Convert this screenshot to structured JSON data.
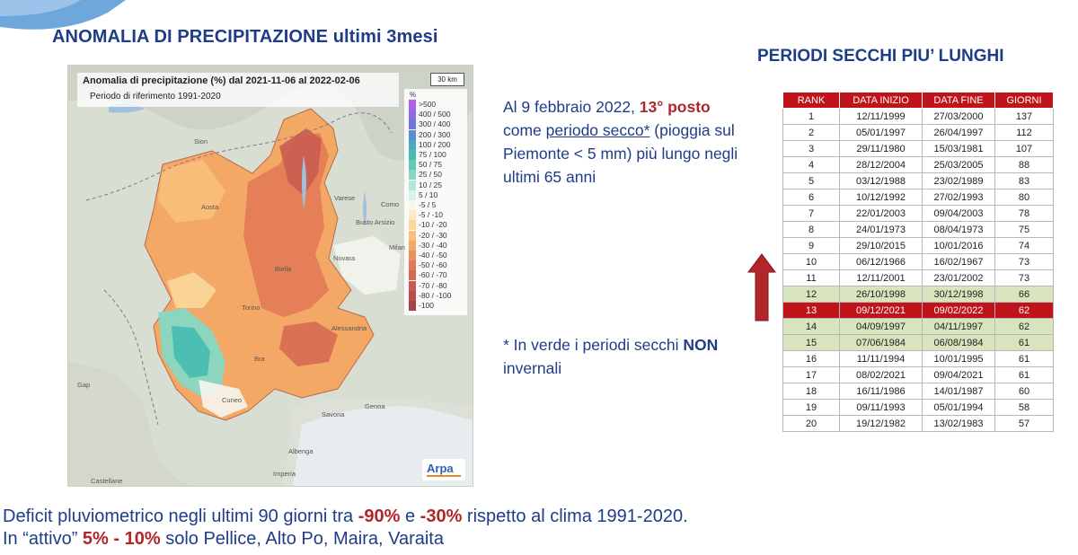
{
  "title_left": "ANOMALIA DI PRECIPITAZIONE ultimi 3mesi",
  "title_right": "PERIODI SECCHI PIU’ LUNGHI",
  "map": {
    "header_title": "Anomalia di precipitazione (%) dal 2021-11-06 al 2022-02-06",
    "header_subtitle": "Periodo di riferimento 1991-2020",
    "scale_label": "30 km",
    "legend_unit": "%",
    "legend": [
      {
        "label": ">500",
        "color": "#b15ef0"
      },
      {
        "label": "400 / 500",
        "color": "#8f6ae0"
      },
      {
        "label": "300 / 400",
        "color": "#6f78d8"
      },
      {
        "label": "200 / 300",
        "color": "#5a8ed2"
      },
      {
        "label": "100 / 200",
        "color": "#4aa9c4"
      },
      {
        "label": "75 / 100",
        "color": "#46bdb0"
      },
      {
        "label": "50 / 75",
        "color": "#5fcab5"
      },
      {
        "label": "25 / 50",
        "color": "#86d8c4"
      },
      {
        "label": "10 / 25",
        "color": "#b3e6d6"
      },
      {
        "label": "5 / 10",
        "color": "#d7f2e8"
      },
      {
        "label": "-5 / 5",
        "color": "#f6f6ee"
      },
      {
        "label": "-5 / -10",
        "color": "#fde8c4"
      },
      {
        "label": "-10 / -20",
        "color": "#fbd79c"
      },
      {
        "label": "-20 / -30",
        "color": "#f8c07a"
      },
      {
        "label": "-30 / -40",
        "color": "#f3a865"
      },
      {
        "label": "-40 / -50",
        "color": "#ec8f5a"
      },
      {
        "label": "-50 / -60",
        "color": "#e27a55"
      },
      {
        "label": "-60 / -70",
        "color": "#d66a52"
      },
      {
        "label": "-70 / -80",
        "color": "#c95c50"
      },
      {
        "label": "-80 / -100",
        "color": "#b84e4e"
      },
      {
        "label": "-100",
        "color": "#a14349"
      }
    ],
    "places": [
      "Sion",
      "Aosta",
      "Biella",
      "Novara",
      "Milan",
      "Torino",
      "Alessandria",
      "Cuneo",
      "Savona",
      "Genoa",
      "Varese",
      "Como",
      "Gap",
      "Imperia",
      "Albenga",
      "Castellane",
      "Bra",
      "Busto Arsizio"
    ],
    "logo_text": "Arpa"
  },
  "side_text": {
    "line_prefix": "Al 9 febbraio 2022, ",
    "rank_highlight": "13° posto",
    "line2_prefix": "come ",
    "underlined": "periodo secco*",
    "line2_rest": " (pioggia sul Piemonte < 5 mm) più lungo negli ultimi 65 anni"
  },
  "note": {
    "prefix": "* In verde i periodi secchi ",
    "bold": "NON",
    "suffix": " invernali"
  },
  "table": {
    "headers": [
      "RANK",
      "DATA INIZIO",
      "DATA FINE",
      "GIORNI"
    ],
    "rows": [
      {
        "rank": "1",
        "start": "12/11/1999",
        "end": "27/03/2000",
        "days": "137",
        "style": ""
      },
      {
        "rank": "2",
        "start": "05/01/1997",
        "end": "26/04/1997",
        "days": "112",
        "style": ""
      },
      {
        "rank": "3",
        "start": "29/11/1980",
        "end": "15/03/1981",
        "days": "107",
        "style": ""
      },
      {
        "rank": "4",
        "start": "28/12/2004",
        "end": "25/03/2005",
        "days": "88",
        "style": ""
      },
      {
        "rank": "5",
        "start": "03/12/1988",
        "end": "23/02/1989",
        "days": "83",
        "style": ""
      },
      {
        "rank": "6",
        "start": "10/12/1992",
        "end": "27/02/1993",
        "days": "80",
        "style": ""
      },
      {
        "rank": "7",
        "start": "22/01/2003",
        "end": "09/04/2003",
        "days": "78",
        "style": ""
      },
      {
        "rank": "8",
        "start": "24/01/1973",
        "end": "08/04/1973",
        "days": "75",
        "style": ""
      },
      {
        "rank": "9",
        "start": "29/10/2015",
        "end": "10/01/2016",
        "days": "74",
        "style": ""
      },
      {
        "rank": "10",
        "start": "06/12/1966",
        "end": "16/02/1967",
        "days": "73",
        "style": ""
      },
      {
        "rank": "11",
        "start": "12/11/2001",
        "end": "23/01/2002",
        "days": "73",
        "style": ""
      },
      {
        "rank": "12",
        "start": "26/10/1998",
        "end": "30/12/1998",
        "days": "66",
        "style": "green"
      },
      {
        "rank": "13",
        "start": "09/12/2021",
        "end": "09/02/2022",
        "days": "62",
        "style": "hl"
      },
      {
        "rank": "14",
        "start": "04/09/1997",
        "end": "04/11/1997",
        "days": "62",
        "style": "green"
      },
      {
        "rank": "15",
        "start": "07/06/1984",
        "end": "06/08/1984",
        "days": "61",
        "style": "green"
      },
      {
        "rank": "16",
        "start": "11/11/1994",
        "end": "10/01/1995",
        "days": "61",
        "style": ""
      },
      {
        "rank": "17",
        "start": "08/02/2021",
        "end": "09/04/2021",
        "days": "61",
        "style": ""
      },
      {
        "rank": "18",
        "start": "16/11/1986",
        "end": "14/01/1987",
        "days": "60",
        "style": ""
      },
      {
        "rank": "19",
        "start": "09/11/1993",
        "end": "05/01/1994",
        "days": "58",
        "style": ""
      },
      {
        "rank": "20",
        "start": "19/12/1982",
        "end": "13/02/1983",
        "days": "57",
        "style": ""
      }
    ]
  },
  "bottom": {
    "l1_a": "Deficit pluviometrico negli ultimi 90 giorni tra ",
    "l1_b": "-90%",
    "l1_c": " e ",
    "l1_d": "-30%",
    "l1_e": " rispetto al clima 1991-2020.",
    "l2_a": "In “attivo” ",
    "l2_b": "5% - 10%",
    "l2_c": " solo Pellice, Alto Po, Maira, Varaita"
  },
  "colors": {
    "title_blue": "#1f3c88",
    "accent_red": "#c0141a",
    "green_row": "#d7e4bd",
    "arrow_red": "#b0262b"
  }
}
